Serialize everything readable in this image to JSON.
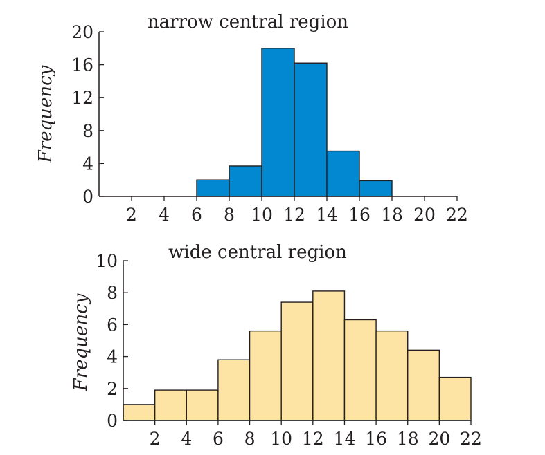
{
  "chart_data": [
    {
      "type": "histogram",
      "title": "narrow central region",
      "ylabel": "Frequency",
      "xlabel": "",
      "xlim": [
        0,
        22
      ],
      "ylim": [
        0,
        20
      ],
      "x_ticks": [
        2,
        4,
        6,
        8,
        10,
        12,
        14,
        16,
        18,
        20,
        22
      ],
      "y_ticks": [
        0,
        4,
        8,
        12,
        16,
        20
      ],
      "bar_color": "#0288d1",
      "bins": [
        {
          "start": 6,
          "end": 8,
          "value": 2
        },
        {
          "start": 8,
          "end": 10,
          "value": 3.7
        },
        {
          "start": 10,
          "end": 12,
          "value": 18
        },
        {
          "start": 12,
          "end": 14,
          "value": 16.2
        },
        {
          "start": 14,
          "end": 16,
          "value": 5.5
        },
        {
          "start": 16,
          "end": 18,
          "value": 1.9
        }
      ]
    },
    {
      "type": "histogram",
      "title": "wide central region",
      "ylabel": "Frequency",
      "xlabel": "",
      "xlim": [
        0,
        22
      ],
      "ylim": [
        0,
        10
      ],
      "x_ticks": [
        2,
        4,
        6,
        8,
        10,
        12,
        14,
        16,
        18,
        20,
        22
      ],
      "y_ticks": [
        0,
        2,
        4,
        6,
        8,
        10
      ],
      "bar_color": "#fde3a4",
      "bins": [
        {
          "start": 0,
          "end": 2,
          "value": 1
        },
        {
          "start": 2,
          "end": 4,
          "value": 1.9
        },
        {
          "start": 4,
          "end": 6,
          "value": 1.9
        },
        {
          "start": 6,
          "end": 8,
          "value": 3.8
        },
        {
          "start": 8,
          "end": 10,
          "value": 5.6
        },
        {
          "start": 10,
          "end": 12,
          "value": 7.4
        },
        {
          "start": 12,
          "end": 14,
          "value": 8.1
        },
        {
          "start": 14,
          "end": 16,
          "value": 6.3
        },
        {
          "start": 16,
          "end": 18,
          "value": 5.6
        },
        {
          "start": 18,
          "end": 20,
          "value": 4.4
        },
        {
          "start": 20,
          "end": 22,
          "value": 2.7
        }
      ]
    }
  ]
}
